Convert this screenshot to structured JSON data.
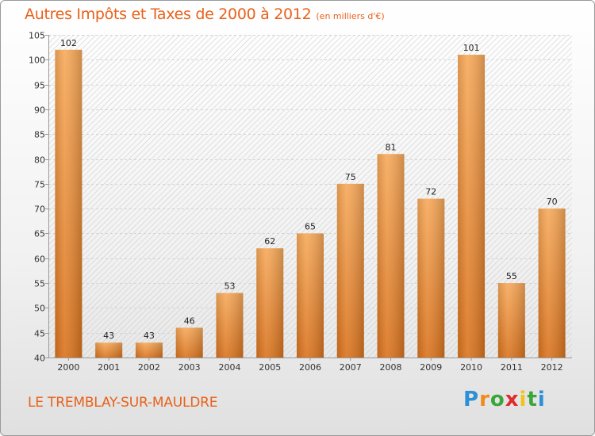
{
  "title": "Autres Impôts et Taxes de 2000 à 2012",
  "subtitle": "(en milliers d'€)",
  "commune": "LE TREMBLAY-SUR-MAULDRE",
  "brand": {
    "letters": [
      "P",
      "r",
      "o",
      "x",
      "i",
      "t",
      "i"
    ],
    "colors": [
      "#2d8fd6",
      "#f08a1c",
      "#3aa63a",
      "#e02b2b",
      "#f0c419",
      "#3aa63a",
      "#2d8fd6"
    ]
  },
  "colors": {
    "bar": "#f39b43",
    "title": "#e8621b"
  },
  "chart_data": {
    "type": "bar",
    "title": "Autres Impôts et Taxes de 2000 à 2012",
    "subtitle": "(en milliers d'€)",
    "categories": [
      "2000",
      "2001",
      "2002",
      "2003",
      "2004",
      "2005",
      "2006",
      "2007",
      "2008",
      "2009",
      "2010",
      "2011",
      "2012"
    ],
    "values": [
      102,
      43,
      43,
      46,
      53,
      62,
      65,
      75,
      81,
      72,
      101,
      55,
      70
    ],
    "ylim": [
      40,
      105
    ],
    "yticks": [
      40,
      45,
      50,
      55,
      60,
      65,
      70,
      75,
      80,
      85,
      90,
      95,
      100,
      105
    ],
    "grid": true,
    "xlabel": "",
    "ylabel": ""
  }
}
